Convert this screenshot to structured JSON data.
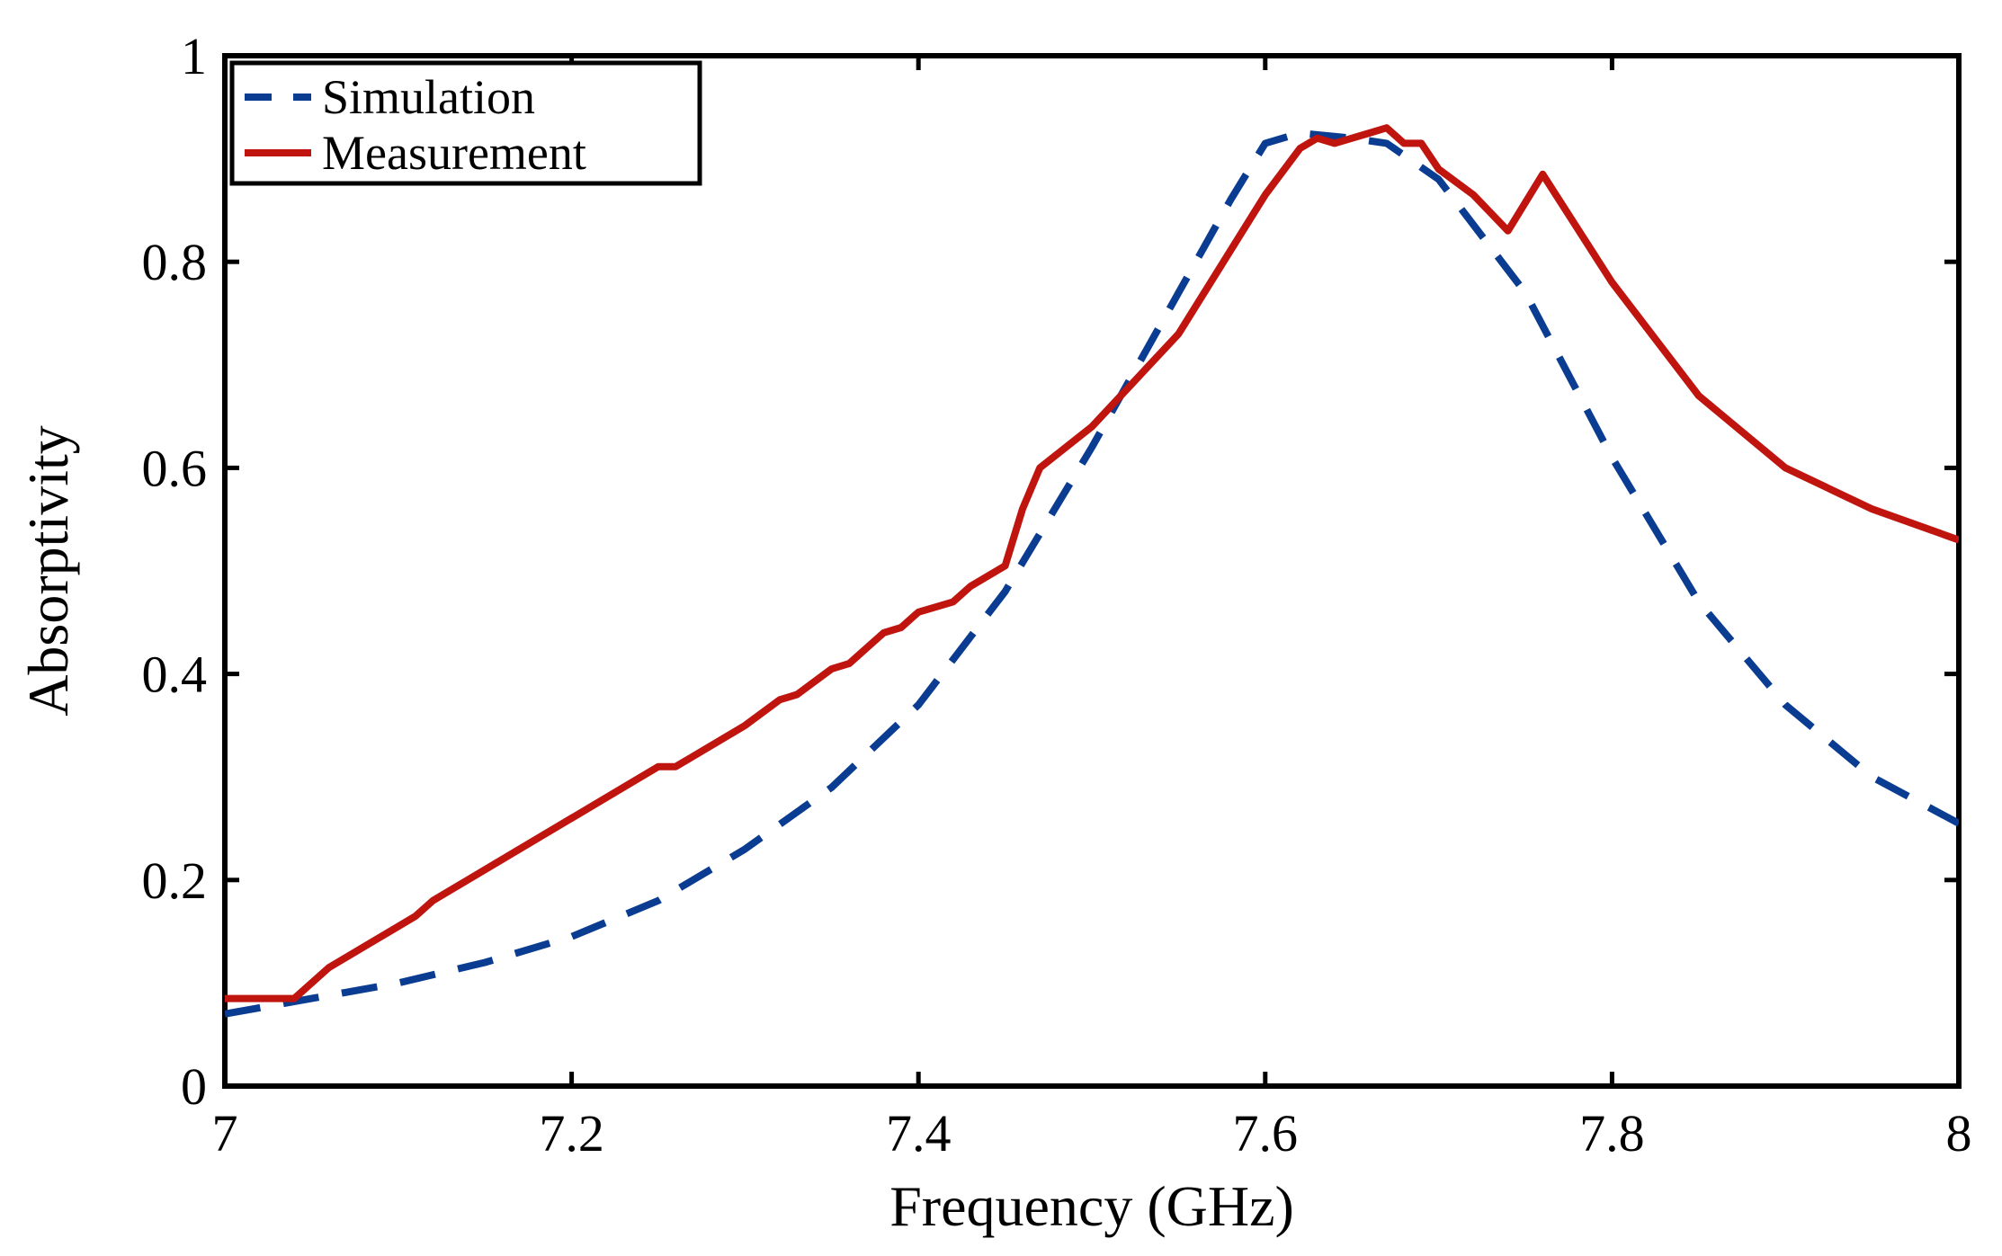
{
  "chart_data": {
    "type": "line",
    "title": "",
    "xlabel": "Frequency (GHz)",
    "ylabel": "Absorptivity",
    "xlim": [
      7,
      8
    ],
    "ylim": [
      0,
      1
    ],
    "x_ticks": [
      7,
      7.2,
      7.4,
      7.6,
      7.8,
      8
    ],
    "x_tick_labels": [
      "7",
      "7.2",
      "7.4",
      "7.6",
      "7.8",
      "8"
    ],
    "y_ticks": [
      0,
      0.2,
      0.4,
      0.6,
      0.8,
      1
    ],
    "y_tick_labels": [
      "0",
      "0.2",
      "0.4",
      "0.6",
      "0.8",
      "1"
    ],
    "grid": false,
    "legend_position": "top-left",
    "series": [
      {
        "name": "Simulation",
        "color": "#0a3d91",
        "style": "dashed",
        "x": [
          7.0,
          7.05,
          7.1,
          7.15,
          7.2,
          7.25,
          7.3,
          7.35,
          7.4,
          7.45,
          7.5,
          7.55,
          7.58,
          7.6,
          7.62,
          7.65,
          7.67,
          7.7,
          7.75,
          7.8,
          7.85,
          7.9,
          7.95,
          8.0
        ],
        "y": [
          0.07,
          0.085,
          0.1,
          0.12,
          0.145,
          0.18,
          0.23,
          0.29,
          0.37,
          0.48,
          0.62,
          0.77,
          0.86,
          0.915,
          0.925,
          0.92,
          0.915,
          0.88,
          0.77,
          0.61,
          0.47,
          0.37,
          0.3,
          0.255
        ]
      },
      {
        "name": "Measurement",
        "color": "#c0140f",
        "style": "solid",
        "x": [
          7.0,
          7.02,
          7.04,
          7.06,
          7.08,
          7.1,
          7.11,
          7.12,
          7.15,
          7.2,
          7.25,
          7.26,
          7.3,
          7.32,
          7.33,
          7.35,
          7.36,
          7.38,
          7.39,
          7.4,
          7.42,
          7.43,
          7.45,
          7.46,
          7.47,
          7.5,
          7.55,
          7.6,
          7.62,
          7.63,
          7.64,
          7.66,
          7.67,
          7.68,
          7.69,
          7.7,
          7.72,
          7.74,
          7.76,
          7.8,
          7.85,
          7.9,
          7.95,
          8.0
        ],
        "y": [
          0.085,
          0.085,
          0.085,
          0.115,
          0.135,
          0.155,
          0.165,
          0.18,
          0.21,
          0.26,
          0.31,
          0.31,
          0.35,
          0.375,
          0.38,
          0.405,
          0.41,
          0.44,
          0.445,
          0.46,
          0.47,
          0.485,
          0.505,
          0.56,
          0.6,
          0.64,
          0.73,
          0.865,
          0.91,
          0.92,
          0.915,
          0.925,
          0.93,
          0.915,
          0.915,
          0.89,
          0.865,
          0.83,
          0.885,
          0.78,
          0.67,
          0.6,
          0.56,
          0.53
        ]
      }
    ]
  }
}
